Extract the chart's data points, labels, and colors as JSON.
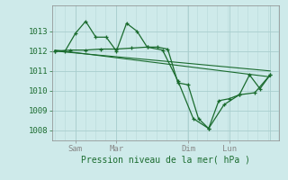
{
  "xlabel": "Pression niveau de la mer( hPa )",
  "background_color": "#ceeaea",
  "grid_color": "#a8cece",
  "line_color": "#1a6b2e",
  "text_color": "#1a6b2e",
  "axis_color": "#888888",
  "ylim": [
    1007.5,
    1014.3
  ],
  "yticks": [
    1008,
    1009,
    1010,
    1011,
    1012,
    1013
  ],
  "series1_x": [
    0.0,
    0.33,
    0.67,
    1.0,
    1.33,
    1.67,
    2.0,
    2.33,
    2.67,
    3.0,
    3.33,
    3.67,
    4.0,
    4.33,
    4.67,
    5.0,
    5.33,
    5.67,
    6.0,
    6.33,
    6.67,
    7.0
  ],
  "series1_y": [
    1012.0,
    1012.0,
    1012.9,
    1013.5,
    1012.7,
    1012.7,
    1012.0,
    1013.4,
    1013.0,
    1012.2,
    1012.2,
    1012.1,
    1010.4,
    1010.3,
    1008.6,
    1008.1,
    1009.5,
    1009.6,
    1009.8,
    1010.8,
    1010.1,
    1010.8
  ],
  "series2_x": [
    0.0,
    0.5,
    1.0,
    1.5,
    2.0,
    2.5,
    3.0,
    3.5,
    4.0,
    4.5,
    5.0,
    5.5,
    6.0,
    6.5,
    7.0
  ],
  "series2_y": [
    1012.0,
    1012.05,
    1012.05,
    1012.1,
    1012.1,
    1012.15,
    1012.2,
    1012.05,
    1010.5,
    1008.6,
    1008.1,
    1009.3,
    1009.8,
    1009.9,
    1010.8
  ],
  "trend1_x": [
    0.0,
    7.0
  ],
  "trend1_y": [
    1012.0,
    1011.0
  ],
  "trend2_x": [
    0.0,
    7.0
  ],
  "trend2_y": [
    1012.05,
    1010.7
  ],
  "x_tick_positions": [
    0.67,
    2.0,
    4.33,
    5.67
  ],
  "x_tick_labels": [
    "Sam",
    "Mar",
    "Dim",
    "Lun"
  ],
  "x_vlines": [
    0.67,
    2.0,
    4.33,
    5.67,
    7.0
  ],
  "xlim": [
    -0.1,
    7.3
  ],
  "figsize": [
    3.2,
    2.0
  ],
  "dpi": 100
}
